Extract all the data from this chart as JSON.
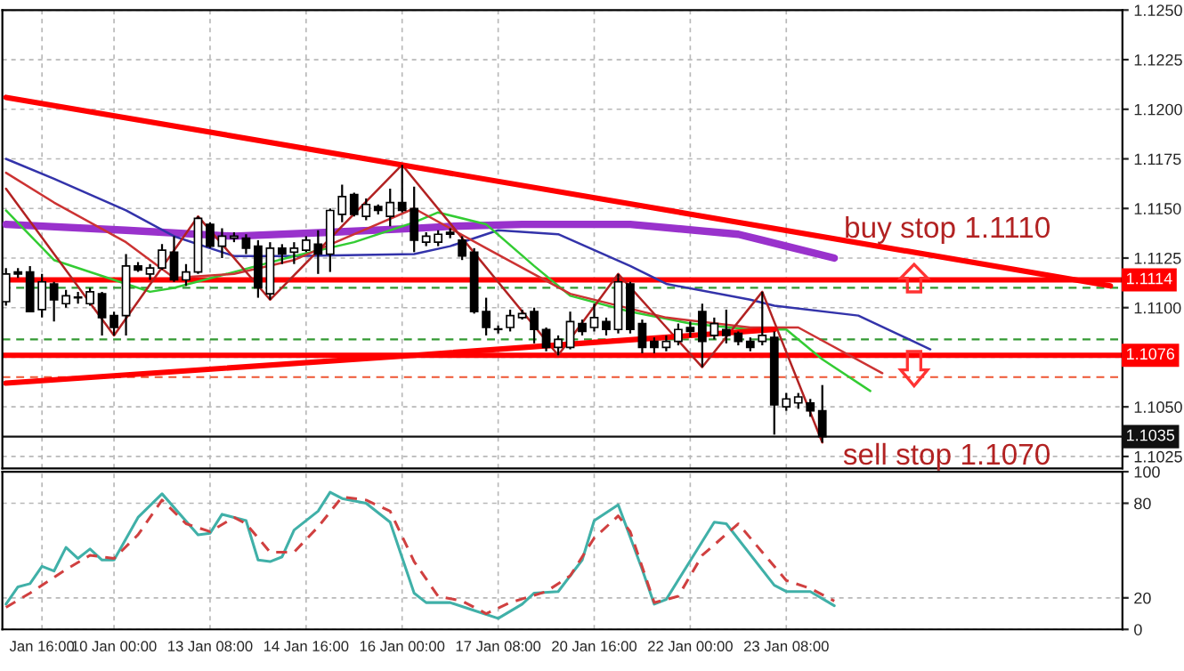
{
  "chart_data": [
    {
      "type": "candlestick",
      "categories": [
        null,
        null,
        null,
        null,
        null,
        null,
        null,
        null,
        null,
        null,
        null,
        null,
        null,
        null,
        null,
        null,
        null,
        null,
        null,
        null,
        null,
        null,
        null,
        null,
        null,
        null,
        null,
        null,
        null,
        null,
        null,
        null,
        null,
        null,
        null,
        null,
        null,
        null,
        null,
        null,
        null,
        null,
        null,
        null,
        null,
        null,
        null,
        null,
        null,
        null,
        null,
        null,
        null,
        null,
        null,
        null,
        null,
        null,
        null,
        null,
        null,
        null,
        null,
        null,
        null,
        null,
        null,
        null,
        null,
        null,
        null,
        null,
        null,
        null,
        null,
        null,
        null,
        null,
        null,
        null,
        null,
        null,
        null,
        null,
        null,
        null,
        null,
        null,
        null,
        null,
        null,
        null,
        null,
        null
      ],
      "tick_labels": "y",
      "ohlc": [
        [
          1.1103,
          1.112,
          1.1101,
          1.1117
        ],
        [
          1.1118,
          1.112,
          1.1115,
          1.1117
        ],
        [
          1.1118,
          1.1121,
          1.1098,
          1.1098
        ],
        [
          1.1099,
          1.1117,
          1.1095,
          1.1113
        ],
        [
          1.1112,
          1.1113,
          1.1093,
          1.1104
        ],
        [
          1.1102,
          1.1109,
          1.11,
          1.1106
        ],
        [
          1.1105,
          1.1108,
          1.1102,
          1.1105
        ],
        [
          1.1102,
          1.111,
          1.1101,
          1.1108
        ],
        [
          1.1107,
          1.1108,
          1.1086,
          1.1095
        ],
        [
          1.1096,
          1.1098,
          1.1086,
          1.109
        ],
        [
          1.1096,
          1.1127,
          1.1086,
          1.1121
        ],
        [
          1.1121,
          1.1123,
          1.1118,
          1.1119
        ],
        [
          1.1117,
          1.1122,
          1.1114,
          1.112
        ],
        [
          1.112,
          1.1132,
          1.1119,
          1.1129
        ],
        [
          1.1128,
          1.1136,
          1.1113,
          1.1114
        ],
        [
          1.1114,
          1.1122,
          1.1111,
          1.1118
        ],
        [
          1.1118,
          1.1146,
          1.1117,
          1.1145
        ],
        [
          1.1142,
          1.1143,
          1.113,
          1.1131
        ],
        [
          1.1131,
          1.114,
          1.1125,
          1.1136
        ],
        [
          1.1135,
          1.1138,
          1.1133,
          1.1136
        ],
        [
          1.1135,
          1.1137,
          1.1127,
          1.113
        ],
        [
          1.1131,
          1.1134,
          1.1105,
          1.111
        ],
        [
          1.1107,
          1.1133,
          1.1104,
          1.113
        ],
        [
          1.113,
          1.1132,
          1.1122,
          1.1127
        ],
        [
          1.1128,
          1.1133,
          1.1122,
          1.113
        ],
        [
          1.1129,
          1.1136,
          1.1128,
          1.1134
        ],
        [
          1.1132,
          1.1139,
          1.1117,
          1.1127
        ],
        [
          1.1127,
          1.115,
          1.1118,
          1.1149
        ],
        [
          1.1147,
          1.1162,
          1.1143,
          1.1156
        ],
        [
          1.1157,
          1.1158,
          1.1146,
          1.1147
        ],
        [
          1.1146,
          1.1155,
          1.1144,
          1.1152
        ],
        [
          1.1151,
          1.1152,
          1.1147,
          1.1149
        ],
        [
          1.1146,
          1.116,
          1.1141,
          1.1153
        ],
        [
          1.1153,
          1.1172,
          1.1148,
          1.1149
        ],
        [
          1.115,
          1.1161,
          1.1128,
          1.1134
        ],
        [
          1.1133,
          1.1138,
          1.1131,
          1.1136
        ],
        [
          1.1133,
          1.1139,
          1.1131,
          1.1137
        ],
        [
          1.1138,
          1.114,
          1.1135,
          1.1137
        ],
        [
          1.1134,
          1.1136,
          1.1124,
          1.1126
        ],
        [
          1.1128,
          1.113,
          1.1097,
          1.1098
        ],
        [
          1.1098,
          1.1105,
          1.1086,
          1.109
        ],
        [
          1.1089,
          1.1091,
          1.1087,
          1.1089
        ],
        [
          1.109,
          1.1099,
          1.1088,
          1.1096
        ],
        [
          1.1095,
          1.1099,
          1.1094,
          1.1097
        ],
        [
          1.1098,
          1.11,
          1.1082,
          1.1089
        ],
        [
          1.1089,
          1.109,
          1.1078,
          1.108
        ],
        [
          1.108,
          1.1086,
          1.1076,
          1.1084
        ],
        [
          1.108,
          1.1098,
          1.1079,
          1.1093
        ],
        [
          1.1092,
          1.1094,
          1.1086,
          1.1088
        ],
        [
          1.109,
          1.1102,
          1.1088,
          1.1095
        ],
        [
          1.1093,
          1.1095,
          1.1086,
          1.1089
        ],
        [
          1.1089,
          1.1117,
          1.1087,
          1.1113
        ],
        [
          1.1112,
          1.1113,
          1.1087,
          1.1089
        ],
        [
          1.1092,
          1.1094,
          1.1077,
          1.108
        ],
        [
          1.1083,
          1.1085,
          1.1077,
          1.108
        ],
        [
          1.108,
          1.1086,
          1.1078,
          1.1083
        ],
        [
          1.1083,
          1.1092,
          1.1081,
          1.1089
        ],
        [
          1.109,
          1.1093,
          1.1085,
          1.1088
        ],
        [
          1.1098,
          1.1102,
          1.107,
          1.1083
        ],
        [
          1.1086,
          1.1095,
          1.1084,
          1.1092
        ],
        [
          1.1089,
          1.1099,
          1.1082,
          1.1086
        ],
        [
          1.1087,
          1.1088,
          1.1081,
          1.1083
        ],
        [
          1.1083,
          1.1085,
          1.1078,
          1.108
        ],
        [
          1.1083,
          1.1108,
          1.1081,
          1.1086
        ],
        [
          1.1085,
          1.1088,
          1.1036,
          1.1051
        ],
        [
          1.105,
          1.1057,
          1.1048,
          1.1054
        ],
        [
          1.1052,
          1.1057,
          1.1049,
          1.1055
        ],
        [
          1.1052,
          1.1054,
          1.1045,
          1.1048
        ],
        [
          1.1048,
          1.1061,
          1.1032,
          1.1035
        ],
        null,
        null,
        null,
        null,
        null,
        null,
        null,
        null,
        null,
        null,
        null,
        null,
        null,
        null,
        null,
        null,
        null,
        null,
        null,
        null,
        null,
        null,
        null,
        null,
        null
      ],
      "series": [
        {
          "type": "line",
          "color": "#9932cc",
          "values": [
            1.1142,
            null,
            null,
            null,
            null,
            null,
            null,
            null,
            null,
            null,
            1.1139,
            null,
            null,
            null,
            null,
            null,
            null,
            null,
            null,
            1.1136,
            null,
            null,
            null,
            null,
            null,
            null,
            null,
            1.1138,
            null,
            null,
            null,
            null,
            null,
            null,
            1.114,
            null,
            null,
            1.1141,
            null,
            null,
            null,
            null,
            null,
            1.1142,
            null,
            null,
            null,
            null,
            null,
            null,
            null,
            null,
            1.1142,
            null,
            null,
            null,
            null,
            null,
            null,
            null,
            null,
            1.1137,
            null,
            1.1134,
            null,
            1.1131,
            null,
            null,
            null,
            1.1125,
            null,
            null,
            null,
            null,
            null,
            null,
            null,
            null,
            null,
            null,
            null,
            null,
            null,
            null,
            null,
            null,
            null,
            null,
            null,
            null,
            null,
            null,
            null,
            null
          ]
        },
        {
          "type": "line",
          "color": "#3333aa",
          "values": [
            1.1175,
            null,
            null,
            null,
            1.1165,
            null,
            null,
            null,
            null,
            null,
            1.1149,
            null,
            null,
            null,
            1.1136,
            null,
            null,
            null,
            null,
            1.1126,
            null,
            null,
            null,
            null,
            1.1126,
            null,
            null,
            null,
            null,
            null,
            null,
            null,
            null,
            null,
            1.1127,
            null,
            null,
            1.1131,
            null,
            null,
            null,
            1.1139,
            null,
            null,
            null,
            null,
            1.1137,
            null,
            null,
            null,
            null,
            null,
            1.1121,
            null,
            null,
            1.1112,
            null,
            null,
            null,
            null,
            null,
            null,
            1.1104,
            null,
            1.1101,
            null,
            null,
            null,
            null,
            null,
            null,
            1.1096,
            null,
            null,
            null,
            null,
            null,
            1.1079,
            null,
            null,
            null,
            null,
            null,
            null,
            null,
            null,
            null,
            null,
            null,
            null,
            null,
            null,
            null,
            null
          ]
        },
        {
          "type": "line",
          "color": "#33cc33",
          "values": [
            1.1149,
            null,
            null,
            null,
            1.1124,
            null,
            null,
            null,
            null,
            null,
            1.1112,
            null,
            1.1108,
            null,
            1.111,
            null,
            null,
            null,
            null,
            1.1118,
            null,
            null,
            null,
            null,
            1.1126,
            null,
            null,
            null,
            null,
            1.1133,
            null,
            null,
            null,
            null,
            1.1143,
            null,
            1.1148,
            null,
            null,
            null,
            1.1142,
            null,
            null,
            null,
            1.1121,
            null,
            null,
            1.1106,
            null,
            null,
            null,
            null,
            1.1098,
            null,
            null,
            null,
            null,
            1.1092,
            null,
            null,
            null,
            null,
            1.1089,
            null,
            null,
            1.1089,
            null,
            null,
            1.1074,
            null,
            null,
            null,
            1.1058,
            null,
            null,
            null,
            null,
            null,
            null,
            null,
            null,
            null,
            null,
            null,
            null,
            null,
            null,
            null,
            null,
            null,
            null,
            null,
            null,
            null
          ]
        },
        {
          "type": "line",
          "color": "#cc3333",
          "values": [
            1.1168,
            null,
            null,
            null,
            1.1153,
            null,
            null,
            null,
            null,
            null,
            1.1133,
            null,
            null,
            null,
            1.1115,
            null,
            null,
            null,
            null,
            1.1117,
            null,
            null,
            null,
            null,
            1.1124,
            null,
            null,
            null,
            null,
            null,
            null,
            null,
            null,
            null,
            1.115,
            null,
            null,
            null,
            null,
            null,
            1.113,
            null,
            null,
            null,
            null,
            null,
            null,
            1.1107,
            null,
            null,
            null,
            null,
            null,
            null,
            null,
            1.1095,
            null,
            null,
            null,
            null,
            null,
            null,
            1.109,
            null,
            null,
            null,
            1.109,
            null,
            null,
            null,
            null,
            null,
            null,
            1.1067,
            null,
            null,
            null,
            null,
            null,
            null,
            null,
            null,
            null,
            null,
            null,
            null,
            null,
            null,
            null,
            null,
            null,
            null,
            null,
            null
          ]
        },
        {
          "type": "line",
          "color": "#b22222",
          "values": [
            1.116,
            null,
            null,
            null,
            null,
            null,
            null,
            null,
            null,
            1.1086,
            null,
            null,
            null,
            null,
            null,
            null,
            1.1146,
            null,
            null,
            null,
            null,
            null,
            1.1104,
            null,
            null,
            null,
            null,
            null,
            null,
            null,
            null,
            null,
            null,
            1.1172,
            null,
            null,
            null,
            null,
            null,
            null,
            null,
            null,
            null,
            null,
            null,
            null,
            1.1076,
            null,
            null,
            null,
            null,
            1.1117,
            null,
            null,
            null,
            null,
            null,
            null,
            1.107,
            null,
            null,
            null,
            null,
            1.1108,
            null,
            null,
            null,
            null,
            1.1032,
            null,
            null,
            null,
            null,
            null,
            null,
            null,
            null,
            null,
            null,
            null,
            null,
            null,
            null,
            null,
            null,
            null,
            null,
            null,
            null,
            null,
            null,
            null,
            null,
            null
          ]
        },
        {
          "type": "line",
          "color": "#ff0000",
          "values": [
            1.1206,
            null,
            null,
            null,
            null,
            null,
            null,
            null,
            null,
            null,
            null,
            null,
            null,
            null,
            null,
            null,
            null,
            null,
            null,
            null,
            null,
            null,
            null,
            null,
            null,
            null,
            null,
            null,
            null,
            null,
            null,
            null,
            null,
            null,
            null,
            null,
            null,
            null,
            null,
            null,
            null,
            null,
            null,
            null,
            null,
            null,
            null,
            null,
            null,
            null,
            null,
            null,
            null,
            null,
            null,
            null,
            null,
            null,
            null,
            null,
            null,
            null,
            null,
            null,
            null,
            null,
            null,
            null,
            null,
            null,
            null,
            null,
            null,
            null,
            null,
            null,
            null,
            null,
            null,
            null,
            null,
            null,
            null,
            null,
            null,
            null,
            null,
            null,
            null,
            null,
            null,
            null,
            1.1111,
            null
          ]
        },
        {
          "type": "line",
          "color": "#ff0000",
          "values": [
            1.1062,
            null,
            null,
            null,
            null,
            null,
            null,
            null,
            null,
            null,
            null,
            null,
            null,
            null,
            null,
            null,
            null,
            null,
            null,
            null,
            null,
            null,
            null,
            null,
            null,
            null,
            null,
            null,
            null,
            null,
            null,
            null,
            null,
            null,
            1.1076,
            null,
            null,
            null,
            null,
            null,
            null,
            null,
            null,
            null,
            null,
            null,
            null,
            null,
            null,
            null,
            null,
            null,
            null,
            null,
            null,
            null,
            null,
            null,
            null,
            null,
            null,
            null,
            null,
            null,
            1.1089,
            null,
            null,
            null,
            null,
            null,
            null,
            null,
            null,
            null,
            null,
            null,
            null,
            null,
            null,
            null,
            null,
            null,
            null,
            null,
            null,
            null,
            null,
            null,
            null,
            null,
            null,
            null,
            null,
            null
          ]
        }
      ],
      "ref_lines": [
        {
          "axis": "y",
          "value": 1.1114,
          "label": "1.1114",
          "color": "#ff0000",
          "line_style": "solid"
        },
        {
          "axis": "y",
          "value": 1.1076,
          "label": "1.1076",
          "color": "#ff0000",
          "line_style": "solid"
        },
        {
          "axis": "y",
          "value": 1.1035,
          "label": "1.1035",
          "color": "#111111",
          "line_style": "solid"
        },
        {
          "axis": "y",
          "value": 1.111,
          "color": "#339933",
          "line_style": "dashed"
        },
        {
          "axis": "y",
          "value": 1.1084,
          "color": "#339933",
          "line_style": "dashed"
        },
        {
          "axis": "y",
          "value": 1.1065,
          "color": "#ee5533",
          "line_style": "dashed"
        }
      ],
      "annotations": [
        "buy stop 1.1110",
        "sell stop 1.1070"
      ],
      "ylim": [
        1.1019,
        1.125
      ],
      "yticks": [
        {
          "value": 1.1025,
          "label": "1.1025"
        },
        {
          "value": 1.105,
          "label": "1.1050"
        },
        {
          "value": 1.1075,
          "label": null
        },
        {
          "value": 1.11,
          "label": "1.1100"
        },
        {
          "value": 1.1125,
          "label": "1.1125"
        },
        {
          "value": 1.115,
          "label": "1.1150"
        },
        {
          "value": 1.1175,
          "label": "1.1175"
        },
        {
          "value": 1.12,
          "label": "1.1200"
        },
        {
          "value": 1.1225,
          "label": "1.1225"
        },
        {
          "value": 1.125,
          "label": "1.1250"
        }
      ],
      "grid": true
    },
    {
      "type": "line",
      "categories": [
        null,
        null,
        null,
        "Jan 16:00",
        null,
        null,
        null,
        null,
        null,
        "10 Jan 00:00",
        null,
        null,
        null,
        null,
        null,
        null,
        null,
        "13 Jan 08:00",
        null,
        null,
        null,
        null,
        null,
        null,
        null,
        "14 Jan 16:00",
        null,
        null,
        null,
        null,
        null,
        null,
        null,
        "16 Jan 00:00",
        null,
        null,
        null,
        null,
        null,
        null,
        null,
        "17 Jan 08:00",
        null,
        null,
        null,
        null,
        null,
        null,
        null,
        "20 Jan 16:00",
        null,
        null,
        null,
        null,
        null,
        null,
        null,
        "22 Jan 00:00",
        null,
        null,
        null,
        null,
        null,
        null,
        null,
        "23 Jan 08:00",
        null,
        null,
        null,
        null,
        null,
        null,
        null,
        null,
        null,
        null,
        null,
        null,
        null,
        null,
        null,
        null,
        null,
        null,
        null,
        null,
        null,
        null,
        null,
        null,
        null,
        null,
        null,
        null
      ],
      "series": [
        {
          "color": "#40b0a8",
          "line_style": "solid",
          "values": [
            16,
            27,
            29,
            40,
            37,
            52,
            45,
            51,
            44,
            44,
            null,
            71,
            null,
            86,
            null,
            null,
            60,
            61,
            73,
            null,
            69,
            44,
            43,
            46,
            63,
            null,
            75,
            87,
            83,
            null,
            80,
            null,
            68,
            null,
            23,
            17,
            null,
            17,
            null,
            12,
            null,
            7,
            null,
            16,
            23,
            null,
            24,
            null,
            44,
            69,
            null,
            79,
            null,
            38,
            16,
            19,
            null,
            null,
            null,
            68,
            67,
            null,
            null,
            null,
            28,
            24,
            null,
            24,
            null,
            15,
            null,
            null,
            null,
            null,
            null,
            null,
            null,
            null,
            null,
            null,
            null,
            null,
            null,
            null,
            null,
            null,
            null,
            null,
            null,
            null,
            null,
            null,
            null,
            null
          ]
        },
        {
          "color": "#d04040",
          "line_style": "dashed",
          "values": [
            14,
            null,
            23,
            null,
            null,
            38,
            null,
            47,
            null,
            45,
            null,
            60,
            null,
            82,
            null,
            67,
            null,
            62,
            null,
            71,
            67,
            null,
            49,
            null,
            49,
            null,
            65,
            null,
            84,
            null,
            82,
            null,
            75,
            null,
            43,
            null,
            21,
            null,
            18,
            null,
            10,
            null,
            17,
            null,
            null,
            24,
            null,
            34,
            null,
            58,
            null,
            72,
            62,
            null,
            17,
            null,
            21,
            null,
            47,
            null,
            null,
            67,
            null,
            49,
            null,
            31,
            null,
            26,
            null,
            18,
            null,
            null,
            null,
            null,
            null,
            null,
            null,
            null,
            null,
            null,
            null,
            null,
            null,
            null,
            null,
            null,
            null,
            null,
            null,
            null,
            null,
            null,
            null,
            null
          ]
        }
      ],
      "ylim": [
        0,
        100
      ],
      "yticks": [
        0,
        20,
        80,
        100
      ],
      "grid": true
    }
  ]
}
